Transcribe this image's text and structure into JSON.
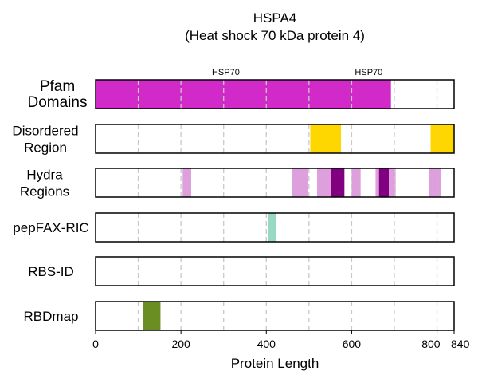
{
  "chart_data": {
    "type": "bar",
    "title": "HSPA4",
    "subtitle": "(Heat shock 70 kDa protein 4)",
    "xlabel": "Protein Length",
    "xlim": [
      0,
      840
    ],
    "xticks": [
      0,
      200,
      400,
      600,
      800,
      840
    ],
    "gridlines": [
      100,
      200,
      300,
      400,
      500,
      600,
      700,
      800
    ],
    "grid": "vertical dashed",
    "rows": [
      {
        "label_lines": [
          "Pfam",
          "Domains"
        ],
        "annotations": [
          {
            "text": "HSP70",
            "x": 305
          },
          {
            "text": "HSP70",
            "x": 640
          }
        ],
        "segments": [
          {
            "start": 0,
            "end": 692,
            "color": "#d12ac8"
          }
        ]
      },
      {
        "label_lines": [
          "Disordered",
          "Region"
        ],
        "segments": [
          {
            "start": 503,
            "end": 575,
            "color": "#ffd700"
          },
          {
            "start": 785,
            "end": 840,
            "color": "#ffd700"
          }
        ]
      },
      {
        "label_lines": [
          "Hydra",
          "Regions"
        ],
        "segments": [
          {
            "start": 204,
            "end": 224,
            "color": "#dda0dd"
          },
          {
            "start": 460,
            "end": 497,
            "color": "#dda0dd"
          },
          {
            "start": 519,
            "end": 551,
            "color": "#dda0dd"
          },
          {
            "start": 551,
            "end": 583,
            "color": "#800080"
          },
          {
            "start": 600,
            "end": 621,
            "color": "#dda0dd"
          },
          {
            "start": 656,
            "end": 664,
            "color": "#dda0dd"
          },
          {
            "start": 664,
            "end": 687,
            "color": "#800080"
          },
          {
            "start": 687,
            "end": 703,
            "color": "#dda0dd"
          },
          {
            "start": 781,
            "end": 809,
            "color": "#dda0dd"
          }
        ]
      },
      {
        "label_lines": [
          "pepFAX-RIC"
        ],
        "segments": [
          {
            "start": 404,
            "end": 423,
            "color": "#98d8c4"
          }
        ]
      },
      {
        "label_lines": [
          "RBS-ID"
        ],
        "segments": []
      },
      {
        "label_lines": [
          "RBDmap"
        ],
        "segments": [
          {
            "start": 111,
            "end": 152,
            "color": "#6b8e23"
          }
        ]
      }
    ]
  }
}
